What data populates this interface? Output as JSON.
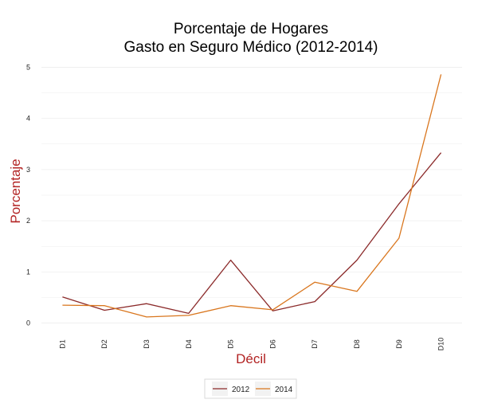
{
  "chart_data": {
    "type": "line",
    "title_line1": "Porcentaje de Hogares",
    "title_line2": "Gasto en Seguro Médico (2012-2014)",
    "xlabel": "Décil",
    "ylabel": "Porcentaje",
    "categories": [
      "D1",
      "D2",
      "D3",
      "D4",
      "D5",
      "D6",
      "D7",
      "D8",
      "D9",
      "D10"
    ],
    "yticks": [
      0,
      1,
      2,
      3,
      4,
      5
    ],
    "ylim": [
      -0.1,
      5.1
    ],
    "grid": true,
    "legend_position": "bottom",
    "series": [
      {
        "name": "2012",
        "color": "#8b2a2a",
        "values": [
          0.51,
          0.25,
          0.38,
          0.19,
          1.23,
          0.24,
          0.42,
          1.23,
          2.33,
          3.33
        ]
      },
      {
        "name": "2014",
        "color": "#d9761e",
        "values": [
          0.35,
          0.34,
          0.12,
          0.15,
          0.34,
          0.26,
          0.8,
          0.62,
          1.66,
          4.86
        ]
      }
    ],
    "axis_title_color": "#b22222",
    "grid_color": "#ededed"
  }
}
